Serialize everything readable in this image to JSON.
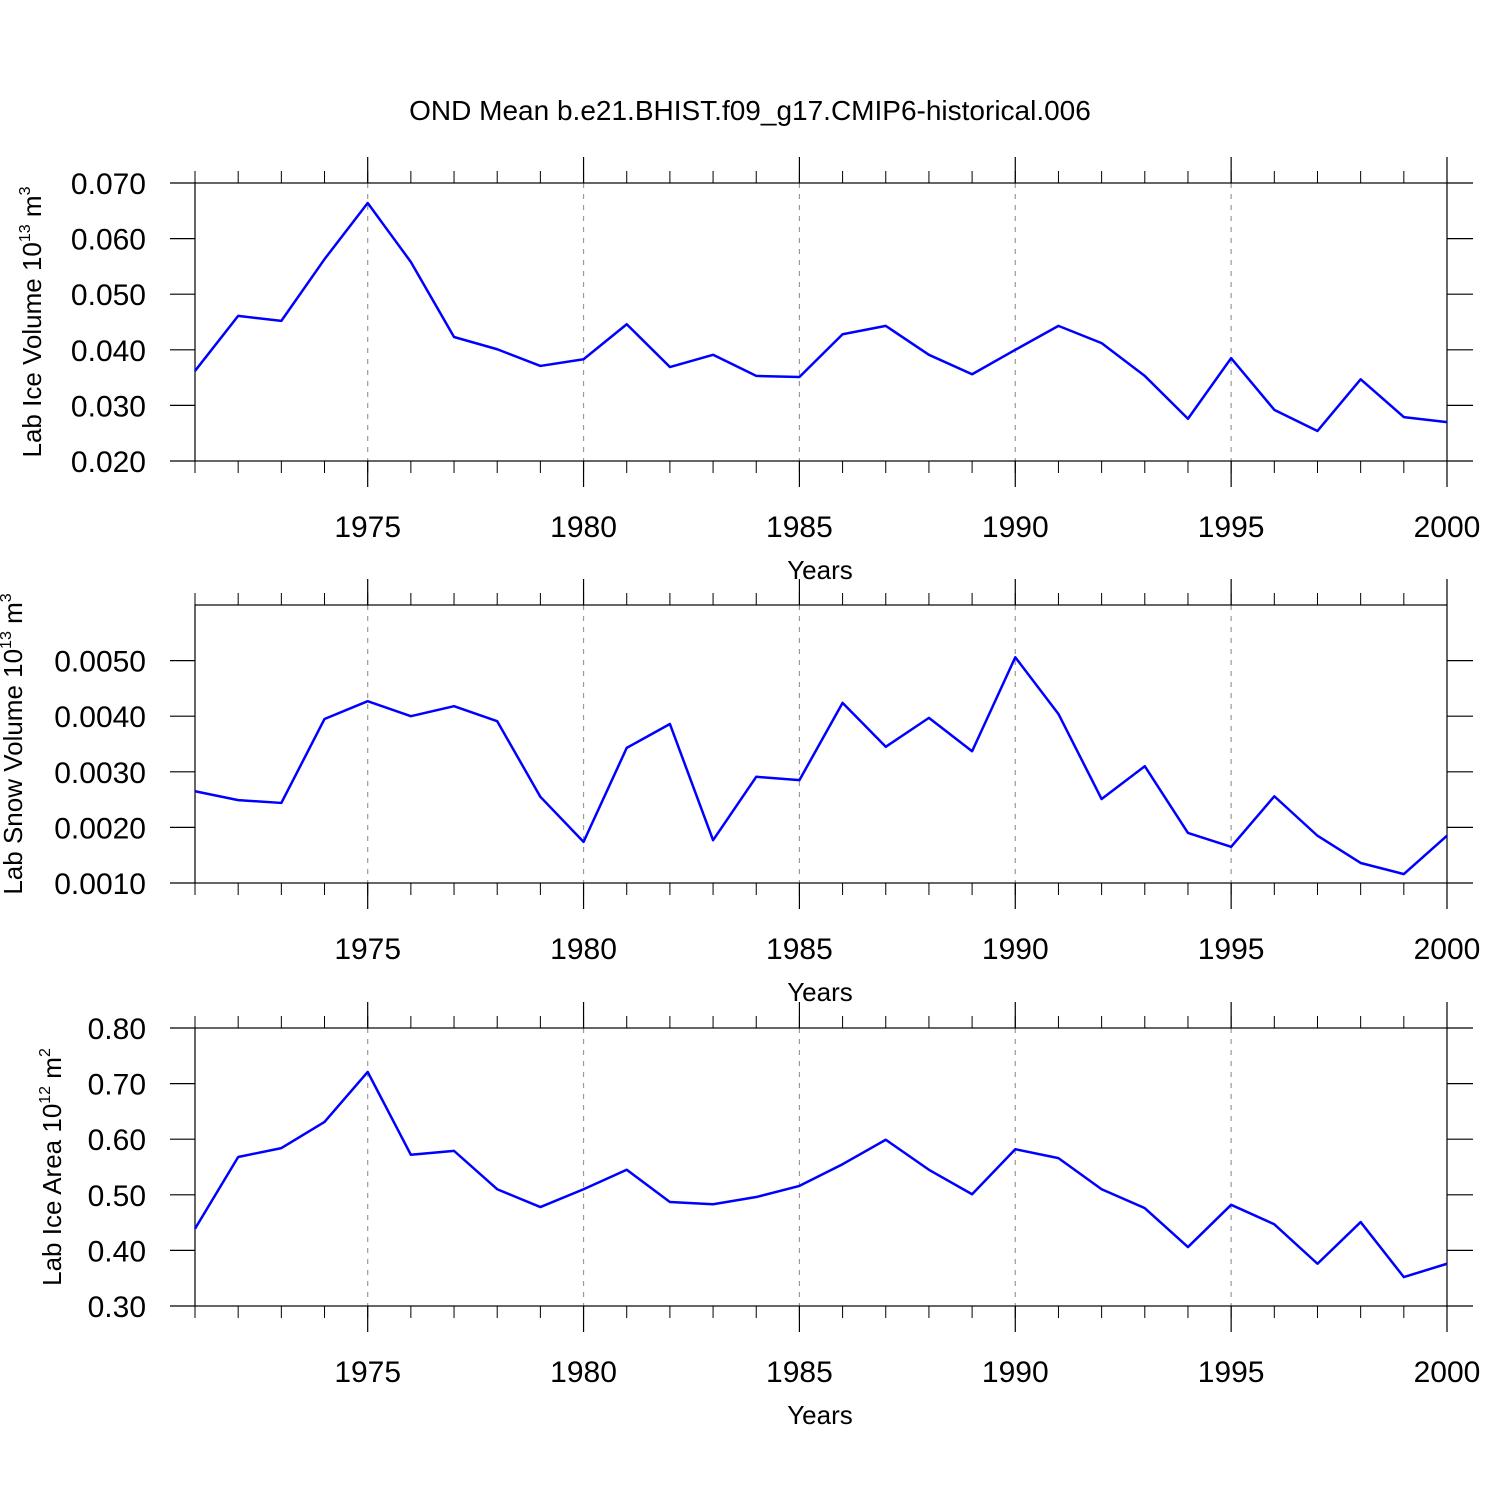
{
  "chart_data": [
    {
      "type": "line",
      "title": "OND Mean b.e21.BHIST.f09_g17.CMIP6-historical.006",
      "xlabel": "Years",
      "ylabel": [
        "Lab Ice Volume 10",
        "13",
        " m",
        "3"
      ],
      "x": [
        1971,
        1972,
        1973,
        1974,
        1975,
        1976,
        1977,
        1978,
        1979,
        1980,
        1981,
        1982,
        1983,
        1984,
        1985,
        1986,
        1987,
        1988,
        1989,
        1990,
        1991,
        1992,
        1993,
        1994,
        1995,
        1996,
        1997,
        1998,
        1999,
        2000
      ],
      "values": [
        0.0362,
        0.0461,
        0.0452,
        0.0563,
        0.0664,
        0.0558,
        0.0423,
        0.0401,
        0.0371,
        0.0383,
        0.0446,
        0.0369,
        0.0391,
        0.0353,
        0.0351,
        0.0428,
        0.0443,
        0.0391,
        0.0356,
        0.04,
        0.0443,
        0.0412,
        0.0353,
        0.0276,
        0.0385,
        0.0292,
        0.0254,
        0.0347,
        0.0279,
        0.027
      ],
      "color": "#0000ff",
      "xlim": [
        1971,
        2000
      ],
      "xticks": [
        1975,
        1980,
        1985,
        1990,
        1995,
        2000
      ],
      "ylim": [
        0.02,
        0.07
      ],
      "yticks": [
        {
          "value": 0.02,
          "label": "0.020"
        },
        {
          "value": 0.03,
          "label": "0.030"
        },
        {
          "value": 0.04,
          "label": "0.040"
        },
        {
          "value": 0.05,
          "label": "0.050"
        },
        {
          "value": 0.06,
          "label": "0.060"
        },
        {
          "value": 0.07,
          "label": "0.070"
        }
      ],
      "xgrid": true
    },
    {
      "type": "line",
      "xlabel": "Years",
      "ylabel": [
        "Lab Snow Volume 10",
        "13",
        " m",
        "3"
      ],
      "x": [
        1971,
        1972,
        1973,
        1974,
        1975,
        1976,
        1977,
        1978,
        1979,
        1980,
        1981,
        1982,
        1983,
        1984,
        1985,
        1986,
        1987,
        1988,
        1989,
        1990,
        1991,
        1992,
        1993,
        1994,
        1995,
        1996,
        1997,
        1998,
        1999,
        2000
      ],
      "values": [
        0.00265,
        0.00249,
        0.00244,
        0.00395,
        0.00427,
        0.004,
        0.00418,
        0.00391,
        0.00255,
        0.00174,
        0.00343,
        0.00386,
        0.00177,
        0.00291,
        0.00285,
        0.00424,
        0.00345,
        0.00397,
        0.00337,
        0.00506,
        0.00404,
        0.00251,
        0.0031,
        0.0019,
        0.00165,
        0.00256,
        0.00185,
        0.00136,
        0.00116,
        0.00185
      ],
      "color": "#0000ff",
      "xlim": [
        1971,
        2000
      ],
      "xticks": [
        1975,
        1980,
        1985,
        1990,
        1995,
        2000
      ],
      "ylim": [
        0.001,
        0.006
      ],
      "yticks": [
        {
          "value": 0.001,
          "label": "0.0010"
        },
        {
          "value": 0.002,
          "label": "0.0020"
        },
        {
          "value": 0.003,
          "label": "0.0030"
        },
        {
          "value": 0.004,
          "label": "0.0040"
        },
        {
          "value": 0.005,
          "label": "0.0050"
        }
      ],
      "xgrid": true
    },
    {
      "type": "line",
      "xlabel": "Years",
      "ylabel": [
        "Lab Ice Area 10",
        "12",
        " m",
        "2"
      ],
      "x": [
        1971,
        1972,
        1973,
        1974,
        1975,
        1976,
        1977,
        1978,
        1979,
        1980,
        1981,
        1982,
        1983,
        1984,
        1985,
        1986,
        1987,
        1988,
        1989,
        1990,
        1991,
        1992,
        1993,
        1994,
        1995,
        1996,
        1997,
        1998,
        1999,
        2000
      ],
      "values": [
        0.439,
        0.568,
        0.584,
        0.631,
        0.721,
        0.572,
        0.579,
        0.51,
        0.478,
        0.51,
        0.545,
        0.487,
        0.483,
        0.496,
        0.516,
        0.555,
        0.599,
        0.545,
        0.501,
        0.582,
        0.566,
        0.51,
        0.476,
        0.406,
        0.482,
        0.447,
        0.376,
        0.451,
        0.352,
        0.376
      ],
      "color": "#0000ff",
      "xlim": [
        1971,
        2000
      ],
      "xticks": [
        1975,
        1980,
        1985,
        1990,
        1995,
        2000
      ],
      "ylim": [
        0.3,
        0.8
      ],
      "yticks": [
        {
          "value": 0.3,
          "label": "0.30"
        },
        {
          "value": 0.4,
          "label": "0.40"
        },
        {
          "value": 0.5,
          "label": "0.50"
        },
        {
          "value": 0.6,
          "label": "0.60"
        },
        {
          "value": 0.7,
          "label": "0.70"
        },
        {
          "value": 0.8,
          "label": "0.80"
        }
      ],
      "xgrid": true
    }
  ]
}
